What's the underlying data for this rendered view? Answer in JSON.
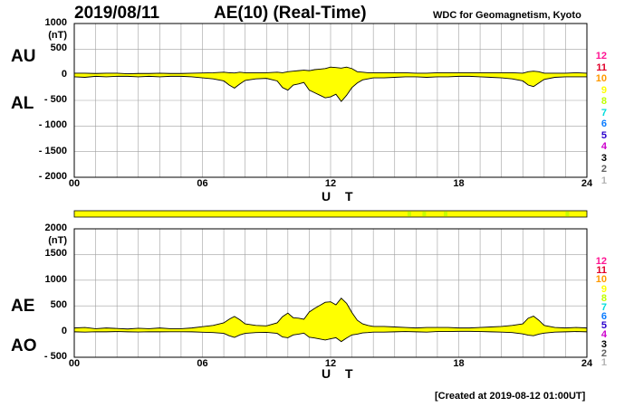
{
  "header": {
    "date": "2019/08/11",
    "title": "AE(10) (Real-Time)",
    "source": "WDC for Geomagnetism, Kyoto"
  },
  "footer": "[Created at 2019-08-12 01:00UT]",
  "legend": {
    "numbers": [
      "12",
      "11",
      "10",
      "9",
      "8",
      "7",
      "6",
      "5",
      "4",
      "3",
      "2",
      "1"
    ],
    "colors": [
      "#ff1493",
      "#e0002a",
      "#ff9900",
      "#ffff00",
      "#bfff00",
      "#00dcdc",
      "#0a7cff",
      "#2a00cc",
      "#cc00cc",
      "#000000",
      "#606060",
      "#b4b4b4"
    ]
  },
  "chart_data": [
    {
      "type": "area",
      "panel": "top",
      "series_labels": [
        "AU",
        "AL"
      ],
      "unit": "(nT)",
      "xlabel": "U T",
      "xticks": [
        "00",
        "06",
        "12",
        "18",
        "24"
      ],
      "yticks": [
        "1000",
        "500",
        "0",
        "- 500",
        "- 1000",
        "- 1500",
        "- 2000"
      ],
      "ylim": [
        -2000,
        1000
      ],
      "xlim": [
        0,
        24
      ],
      "grid": true,
      "fill_color": "#ffff00",
      "x": [
        0,
        0.5,
        1,
        1.5,
        2,
        2.5,
        3,
        3.5,
        4,
        4.5,
        5,
        5.5,
        6,
        6.5,
        7,
        7.25,
        7.5,
        7.75,
        8,
        8.5,
        9,
        9.5,
        9.75,
        10,
        10.25,
        10.5,
        10.75,
        11,
        11.25,
        11.5,
        11.75,
        12,
        12.25,
        12.5,
        12.75,
        13,
        13.25,
        13.5,
        13.75,
        14,
        14.5,
        15,
        15.5,
        16,
        16.5,
        17,
        17.5,
        18,
        18.5,
        19,
        19.5,
        20,
        20.5,
        21,
        21.25,
        21.5,
        21.75,
        22,
        22.5,
        23,
        23.5,
        24
      ],
      "series": [
        {
          "name": "AU",
          "values": [
            30,
            30,
            25,
            30,
            30,
            20,
            25,
            25,
            30,
            25,
            25,
            30,
            35,
            40,
            50,
            40,
            35,
            50,
            40,
            40,
            40,
            50,
            40,
            60,
            70,
            80,
            90,
            80,
            100,
            110,
            120,
            150,
            140,
            130,
            150,
            120,
            60,
            50,
            40,
            40,
            40,
            40,
            40,
            30,
            30,
            40,
            40,
            40,
            40,
            40,
            40,
            40,
            40,
            30,
            60,
            70,
            60,
            30,
            30,
            30,
            40,
            30
          ]
        },
        {
          "name": "AL",
          "values": [
            -40,
            -50,
            -30,
            -40,
            -30,
            -30,
            -40,
            -30,
            -40,
            -30,
            -30,
            -40,
            -60,
            -80,
            -120,
            -200,
            -260,
            -180,
            -110,
            -80,
            -70,
            -120,
            -250,
            -300,
            -200,
            -180,
            -150,
            -300,
            -350,
            -400,
            -450,
            -430,
            -380,
            -520,
            -400,
            -250,
            -160,
            -100,
            -80,
            -60,
            -60,
            -50,
            -40,
            -40,
            -50,
            -40,
            -40,
            -30,
            -30,
            -40,
            -50,
            -60,
            -80,
            -120,
            -200,
            -230,
            -160,
            -90,
            -50,
            -40,
            -40,
            -40
          ]
        }
      ]
    },
    {
      "type": "area",
      "panel": "bottom",
      "series_labels": [
        "AE",
        "AO"
      ],
      "unit": "(nT)",
      "xlabel": "U T",
      "xticks": [
        "00",
        "06",
        "12",
        "18",
        "24"
      ],
      "yticks": [
        "2000",
        "1500",
        "1000",
        "500",
        "0",
        "- 500"
      ],
      "ylim": [
        -500,
        2000
      ],
      "xlim": [
        0,
        24
      ],
      "grid": true,
      "fill_color": "#ffff00",
      "x": [
        0,
        0.5,
        1,
        1.5,
        2,
        2.5,
        3,
        3.5,
        4,
        4.5,
        5,
        5.5,
        6,
        6.5,
        7,
        7.25,
        7.5,
        7.75,
        8,
        8.5,
        9,
        9.5,
        9.75,
        10,
        10.25,
        10.5,
        10.75,
        11,
        11.25,
        11.5,
        11.75,
        12,
        12.25,
        12.5,
        12.75,
        13,
        13.25,
        13.5,
        13.75,
        14,
        14.5,
        15,
        15.5,
        16,
        16.5,
        17,
        17.5,
        18,
        18.5,
        19,
        19.5,
        20,
        20.5,
        21,
        21.25,
        21.5,
        21.75,
        22,
        22.5,
        23,
        23.5,
        24
      ],
      "series": [
        {
          "name": "AE",
          "values": [
            70,
            80,
            55,
            70,
            60,
            50,
            65,
            55,
            70,
            55,
            55,
            70,
            95,
            120,
            170,
            240,
            295,
            230,
            150,
            120,
            110,
            170,
            290,
            360,
            270,
            260,
            240,
            380,
            450,
            510,
            570,
            580,
            520,
            650,
            550,
            370,
            220,
            150,
            120,
            100,
            100,
            90,
            80,
            70,
            80,
            80,
            80,
            70,
            70,
            80,
            90,
            100,
            120,
            150,
            260,
            300,
            220,
            120,
            80,
            70,
            80,
            70
          ]
        },
        {
          "name": "AO",
          "values": [
            -5,
            -10,
            -3,
            -5,
            0,
            -5,
            -8,
            -3,
            -5,
            -3,
            -3,
            -5,
            -13,
            -20,
            -35,
            -80,
            -113,
            -65,
            -35,
            -20,
            -15,
            -35,
            -105,
            -120,
            -65,
            -50,
            -30,
            -110,
            -125,
            -145,
            -165,
            -140,
            -120,
            -195,
            -125,
            -65,
            -50,
            -25,
            -20,
            -10,
            -10,
            -5,
            0,
            -5,
            -10,
            0,
            0,
            5,
            5,
            0,
            -5,
            -10,
            -20,
            -45,
            -70,
            -80,
            -50,
            -30,
            -10,
            -5,
            0,
            -5
          ]
        }
      ]
    }
  ],
  "status_bar": {
    "colors": [
      "#ffff00",
      "#c8ff00"
    ]
  }
}
